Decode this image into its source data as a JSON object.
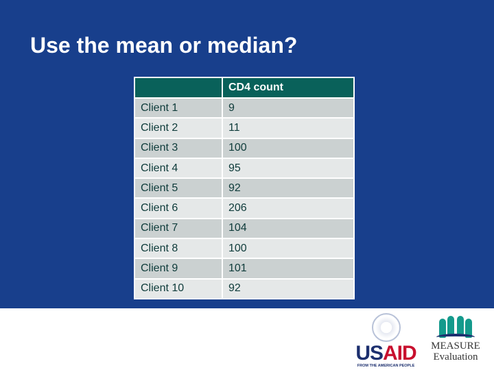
{
  "slide": {
    "title": "Use the mean or median?"
  },
  "table": {
    "headers": [
      "",
      "CD4 count"
    ],
    "rows": [
      [
        "Client 1",
        "9"
      ],
      [
        "Client 2",
        "11"
      ],
      [
        "Client 3",
        "100"
      ],
      [
        "Client 4",
        "95"
      ],
      [
        "Client 5",
        "92"
      ],
      [
        "Client 6",
        "206"
      ],
      [
        "Client 7",
        "104"
      ],
      [
        "Client 8",
        "100"
      ],
      [
        "Client 9",
        "101"
      ],
      [
        "Client 10",
        "92"
      ]
    ]
  },
  "logos": {
    "usaid": {
      "word_a": "US",
      "word_b": "AID",
      "tagline": "FROM THE AMERICAN PEOPLE"
    },
    "measure": {
      "line1": "MEASURE",
      "line2": "Evaluation"
    }
  },
  "colors": {
    "background": "#183f8c",
    "header": "#09615a",
    "row_dark": "#cbd1d1",
    "row_light": "#e5e8e8"
  }
}
